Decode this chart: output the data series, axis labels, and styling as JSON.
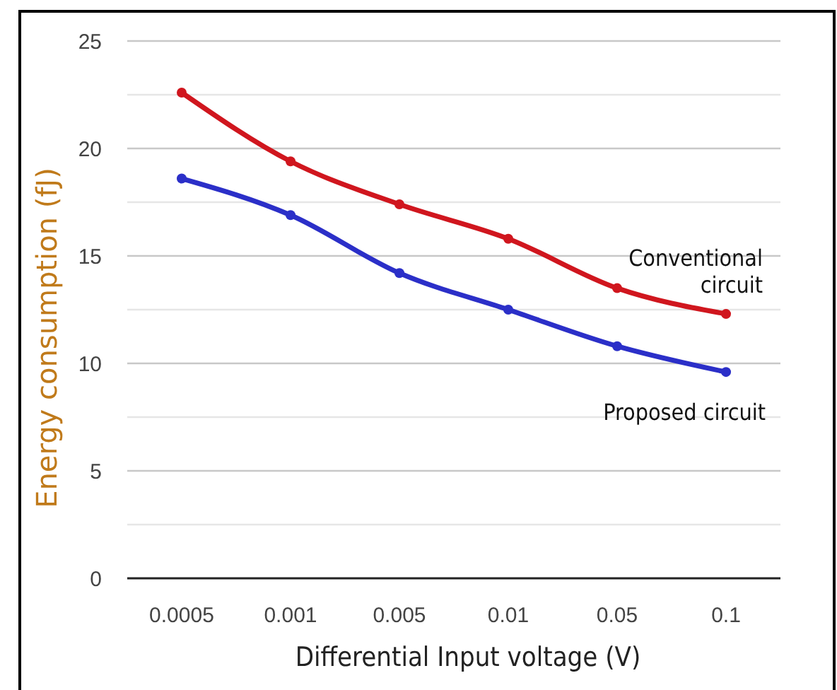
{
  "chart_data": {
    "type": "line",
    "xlabel": "Differential Input voltage (V)",
    "ylabel": "Energy consumption (fJ)",
    "categories": [
      "0.0005",
      "0.001",
      "0.005",
      "0.01",
      "0.05",
      "0.1"
    ],
    "series": [
      {
        "name": "Conventional circuit",
        "color": "#d0161e",
        "values": [
          22.6,
          19.4,
          17.4,
          15.8,
          13.5,
          12.3
        ]
      },
      {
        "name": "Proposed circuit",
        "color": "#2b2fc8",
        "values": [
          18.6,
          16.9,
          14.2,
          12.5,
          10.8,
          9.6
        ]
      }
    ],
    "ylim": [
      0,
      25
    ],
    "yticks": [
      0,
      {
        "value": 2.5,
        "label": null
      },
      5,
      {
        "value": 7.5,
        "label": null
      },
      10,
      {
        "value": 12.5,
        "label": null
      },
      15,
      {
        "value": 17.5,
        "label": null
      },
      20,
      {
        "value": 22.5,
        "label": null
      },
      25
    ],
    "grid": "y",
    "marker": "circle",
    "line_style": "solid"
  }
}
